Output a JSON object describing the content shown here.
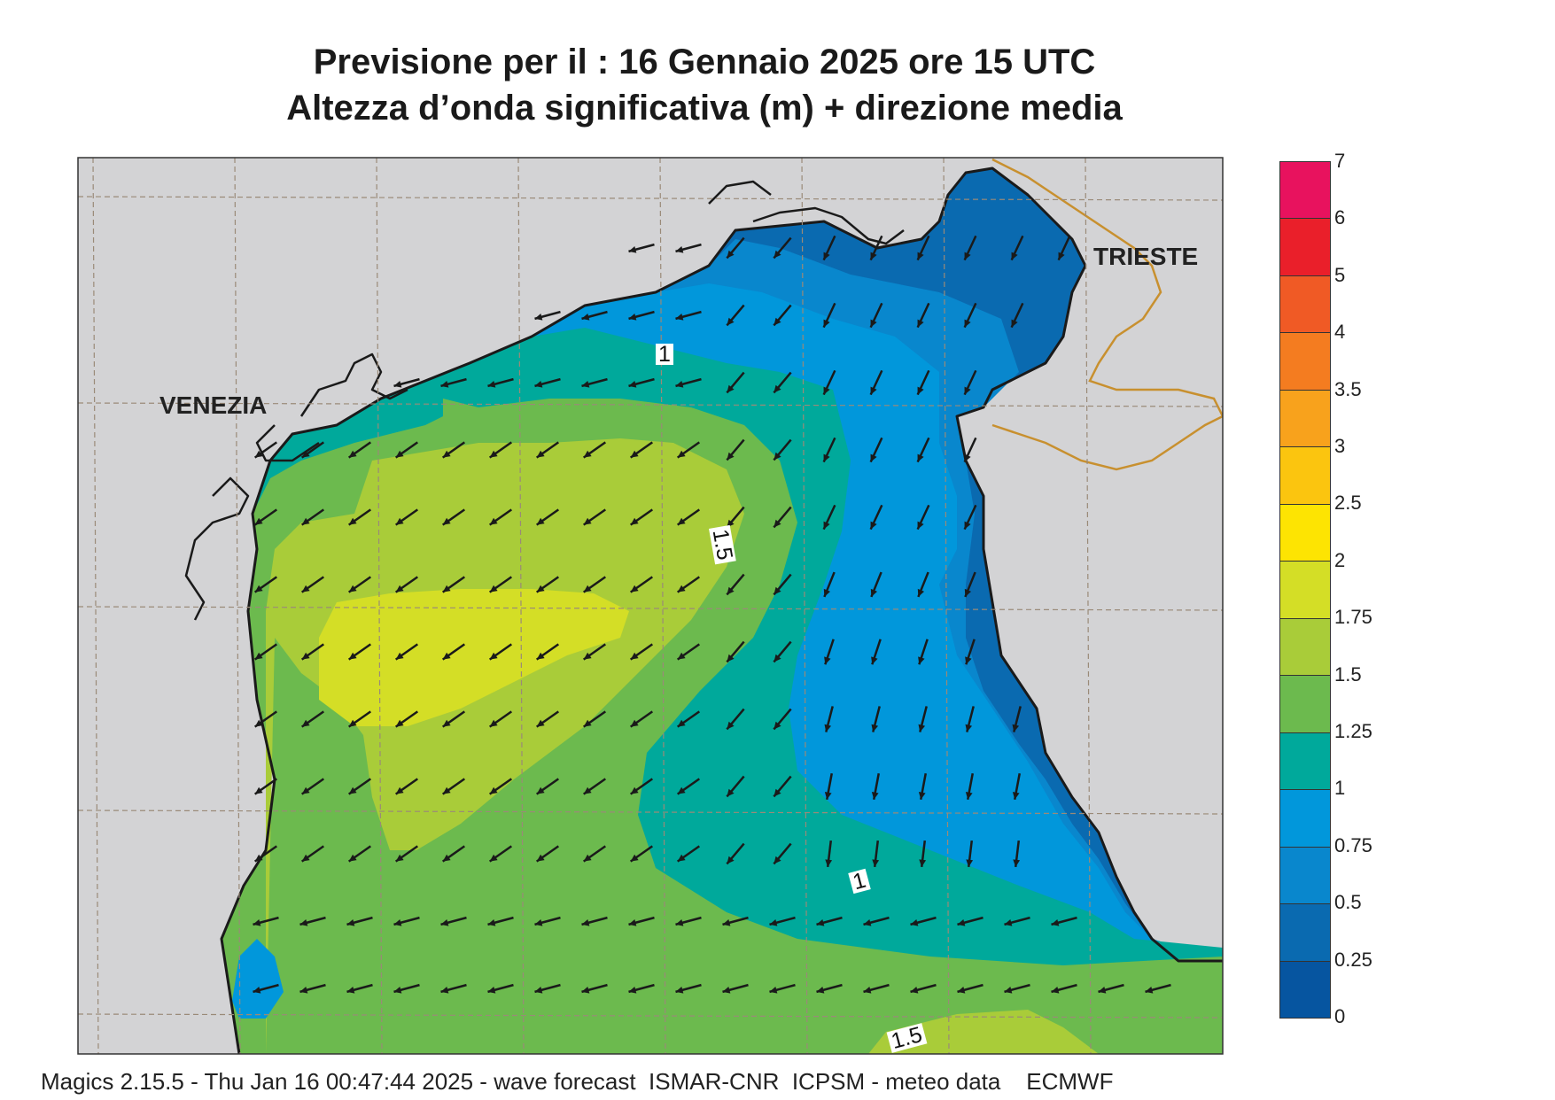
{
  "title_line1": "Previsione per il  :  16  Gennaio  2025   ore 15 UTC",
  "title_line2": "Altezza d’onda significativa (m) + direzione media",
  "cities": {
    "venezia": "VENEZIA",
    "trieste": "TRIESTE"
  },
  "contour_labels": [
    "1",
    "1.5",
    "1",
    "1.5"
  ],
  "legend": {
    "labels": [
      "7",
      "6",
      "5",
      "4",
      "3.5",
      "3",
      "2.5",
      "2",
      "1.75",
      "1.5",
      "1.25",
      "1",
      "0.75",
      "0.5",
      "0.25",
      "0"
    ],
    "colors": [
      "#e8125e",
      "#ea1f2a",
      "#f05a25",
      "#f47c20",
      "#f8a21c",
      "#fbc50f",
      "#fde402",
      "#d4de26",
      "#a9cc39",
      "#6cba4e",
      "#00a99b",
      "#0197db",
      "#0987cd",
      "#0a6ab0",
      "#0655a0"
    ]
  },
  "colors": {
    "land": "#d3d3d5",
    "coast": "#1a1a1a",
    "border": "#c8902f",
    "grid": "#9a8a78",
    "arrow": "#1a1a1a"
  },
  "footer": "Magics 2.15.5 - Thu Jan 16 00:47:44 2025 - wave forecast  ISMAR-CNR  ICPSM - meteo data    ECMWF"
}
